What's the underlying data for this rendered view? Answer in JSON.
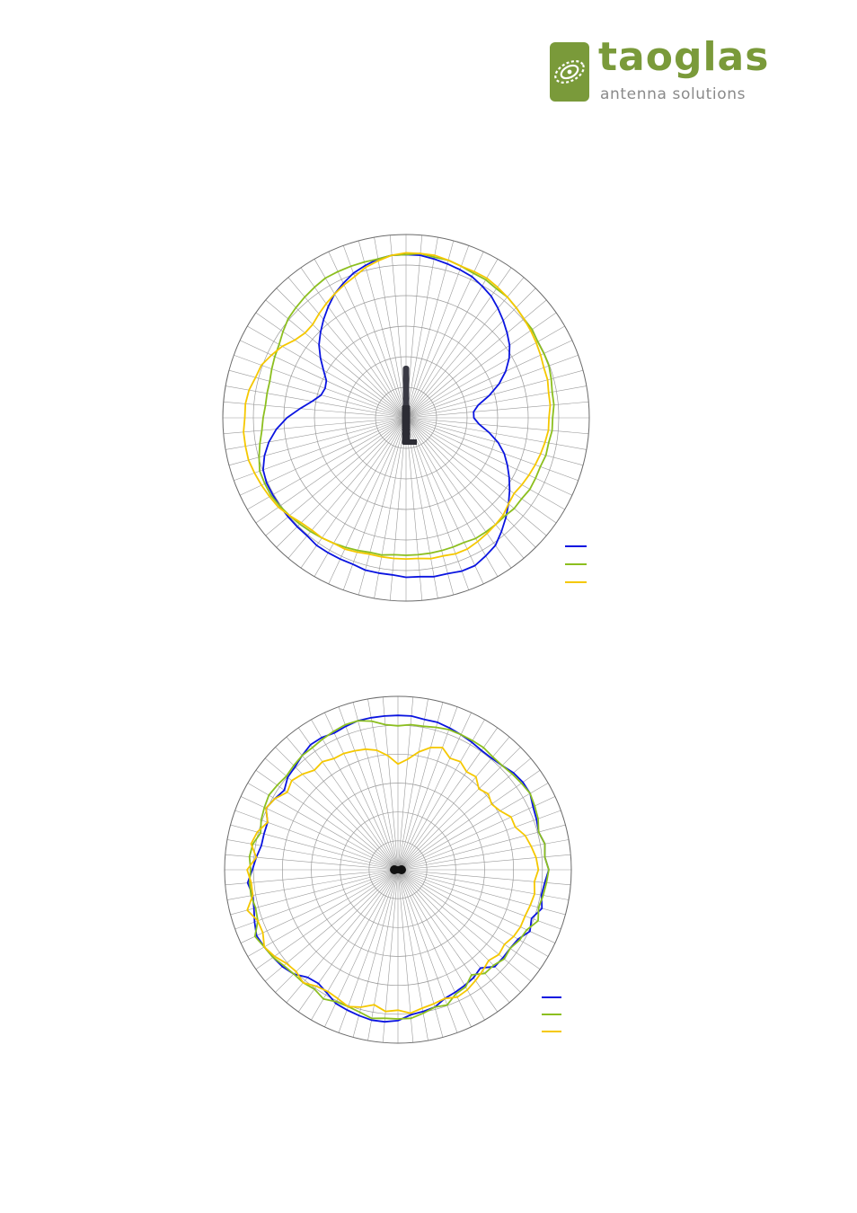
{
  "logo": {
    "word": "taoglas",
    "tagline": "antenna solutions",
    "color": "#7a9a3a",
    "tagline_color": "#8a8a8a"
  },
  "chart_data": [
    {
      "type": "polar-line",
      "title": "",
      "grid": true,
      "angular_divisions": 72,
      "radial_rings": 6,
      "legend_position": "bottom-right",
      "series": [
        {
          "color": "#0a14e0",
          "values": [
            0.89,
            0.89,
            0.88,
            0.87,
            0.86,
            0.85,
            0.83,
            0.81,
            0.78,
            0.75,
            0.72,
            0.69,
            0.65,
            0.6,
            0.54,
            0.47,
            0.4,
            0.37,
            0.37,
            0.4,
            0.46,
            0.52,
            0.57,
            0.61,
            0.65,
            0.69,
            0.73,
            0.77,
            0.81,
            0.85,
            0.87,
            0.89,
            0.89,
            0.88,
            0.88,
            0.87,
            0.87,
            0.86,
            0.86,
            0.86,
            0.85,
            0.85,
            0.85,
            0.85,
            0.84,
            0.84,
            0.84,
            0.84,
            0.84,
            0.84,
            0.83,
            0.8,
            0.76,
            0.71,
            0.65,
            0.58,
            0.52,
            0.48,
            0.47,
            0.48,
            0.52,
            0.57,
            0.62,
            0.66,
            0.7,
            0.74,
            0.78,
            0.81,
            0.84,
            0.86,
            0.88,
            0.89
          ]
        },
        {
          "color": "#8cbf1f",
          "values": [
            0.89,
            0.9,
            0.89,
            0.89,
            0.88,
            0.87,
            0.87,
            0.86,
            0.86,
            0.85,
            0.84,
            0.84,
            0.83,
            0.83,
            0.83,
            0.82,
            0.81,
            0.81,
            0.8,
            0.8,
            0.79,
            0.79,
            0.78,
            0.78,
            0.78,
            0.77,
            0.77,
            0.76,
            0.76,
            0.76,
            0.76,
            0.75,
            0.75,
            0.75,
            0.75,
            0.75,
            0.75,
            0.75,
            0.76,
            0.76,
            0.77,
            0.78,
            0.79,
            0.8,
            0.81,
            0.82,
            0.83,
            0.84,
            0.85,
            0.85,
            0.85,
            0.83,
            0.81,
            0.79,
            0.78,
            0.77,
            0.77,
            0.77,
            0.78,
            0.79,
            0.8,
            0.82,
            0.84,
            0.85,
            0.86,
            0.87,
            0.88,
            0.88,
            0.88,
            0.88,
            0.88,
            0.89
          ]
        },
        {
          "color": "#f5c800",
          "values": [
            0.9,
            0.9,
            0.9,
            0.89,
            0.88,
            0.88,
            0.88,
            0.87,
            0.86,
            0.85,
            0.84,
            0.83,
            0.82,
            0.81,
            0.8,
            0.8,
            0.79,
            0.79,
            0.78,
            0.78,
            0.77,
            0.76,
            0.75,
            0.74,
            0.73,
            0.72,
            0.73,
            0.75,
            0.76,
            0.77,
            0.78,
            0.79,
            0.79,
            0.78,
            0.78,
            0.77,
            0.77,
            0.77,
            0.77,
            0.77,
            0.78,
            0.79,
            0.79,
            0.8,
            0.8,
            0.81,
            0.83,
            0.85,
            0.86,
            0.87,
            0.88,
            0.89,
            0.89,
            0.89,
            0.88,
            0.88,
            0.87,
            0.85,
            0.84,
            0.81,
            0.78,
            0.74,
            0.72,
            0.72,
            0.74,
            0.76,
            0.78,
            0.8,
            0.82,
            0.85,
            0.87,
            0.89
          ]
        }
      ]
    },
    {
      "type": "polar-line",
      "title": "",
      "grid": true,
      "angular_divisions": 72,
      "radial_rings": 6,
      "legend_position": "bottom-right",
      "series": [
        {
          "color": "#0a14e0",
          "values": [
            0.89,
            0.89,
            0.88,
            0.88,
            0.87,
            0.86,
            0.85,
            0.84,
            0.84,
            0.85,
            0.87,
            0.88,
            0.88,
            0.86,
            0.85,
            0.84,
            0.86,
            0.85,
            0.87,
            0.85,
            0.84,
            0.86,
            0.82,
            0.84,
            0.8,
            0.79,
            0.79,
            0.79,
            0.74,
            0.76,
            0.77,
            0.78,
            0.79,
            0.82,
            0.83,
            0.84,
            0.87,
            0.88,
            0.88,
            0.87,
            0.86,
            0.85,
            0.82,
            0.8,
            0.81,
            0.85,
            0.87,
            0.88,
            0.89,
            0.9,
            0.88,
            0.86,
            0.85,
            0.87,
            0.84,
            0.82,
            0.8,
            0.8,
            0.8,
            0.84,
            0.82,
            0.8,
            0.83,
            0.84,
            0.86,
            0.88,
            0.88,
            0.87,
            0.88,
            0.89,
            0.89,
            0.89
          ]
        },
        {
          "color": "#8cbf1f",
          "values": [
            0.83,
            0.84,
            0.84,
            0.85,
            0.86,
            0.86,
            0.86,
            0.86,
            0.85,
            0.85,
            0.86,
            0.87,
            0.88,
            0.87,
            0.86,
            0.84,
            0.86,
            0.85,
            0.87,
            0.86,
            0.85,
            0.84,
            0.86,
            0.82,
            0.81,
            0.79,
            0.8,
            0.78,
            0.78,
            0.74,
            0.78,
            0.79,
            0.83,
            0.82,
            0.84,
            0.86,
            0.86,
            0.86,
            0.87,
            0.85,
            0.84,
            0.84,
            0.86,
            0.84,
            0.85,
            0.85,
            0.86,
            0.88,
            0.89,
            0.91,
            0.86,
            0.85,
            0.86,
            0.86,
            0.85,
            0.86,
            0.85,
            0.82,
            0.84,
            0.85,
            0.86,
            0.85,
            0.84,
            0.85,
            0.86,
            0.86,
            0.87,
            0.88,
            0.89,
            0.89,
            0.87,
            0.84
          ]
        },
        {
          "color": "#f5c800",
          "values": [
            0.61,
            0.64,
            0.69,
            0.73,
            0.75,
            0.71,
            0.72,
            0.69,
            0.7,
            0.66,
            0.68,
            0.66,
            0.68,
            0.72,
            0.72,
            0.76,
            0.78,
            0.8,
            0.81,
            0.79,
            0.8,
            0.79,
            0.78,
            0.78,
            0.77,
            0.75,
            0.76,
            0.74,
            0.76,
            0.78,
            0.8,
            0.81,
            0.79,
            0.8,
            0.81,
            0.83,
            0.81,
            0.82,
            0.79,
            0.82,
            0.84,
            0.82,
            0.81,
            0.82,
            0.85,
            0.83,
            0.84,
            0.87,
            0.89,
            0.86,
            0.86,
            0.9,
            0.85,
            0.85,
            0.87,
            0.82,
            0.86,
            0.84,
            0.8,
            0.84,
            0.82,
            0.78,
            0.8,
            0.78,
            0.75,
            0.76,
            0.74,
            0.74,
            0.73,
            0.72,
            0.7,
            0.66
          ]
        }
      ]
    }
  ]
}
